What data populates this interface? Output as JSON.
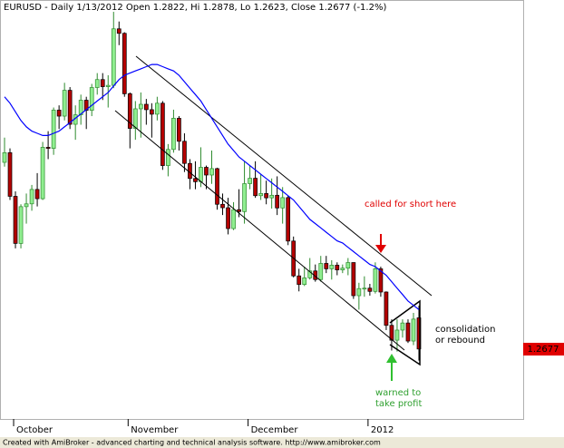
{
  "chart_data": {
    "type": "candlestick",
    "title": "EURUSD - Daily 1/13/2012 Open 1.2822, Hi 1.2878, Lo 1.2623, Close 1.2677 (-1.2%)",
    "categories": [
      null,
      null,
      "October",
      null,
      null,
      null,
      null,
      null,
      null,
      null,
      null,
      null,
      null,
      null,
      null,
      null,
      null,
      null,
      null,
      null,
      null,
      null,
      null,
      "November",
      null,
      null,
      null,
      null,
      null,
      null,
      null,
      null,
      null,
      null,
      null,
      null,
      null,
      null,
      null,
      null,
      null,
      null,
      null,
      null,
      null,
      "December",
      null,
      null,
      null,
      null,
      null,
      null,
      null,
      null,
      null,
      null,
      null,
      null,
      null,
      null,
      null,
      null,
      null,
      null,
      null,
      null,
      null,
      "2012",
      null,
      null,
      null,
      null,
      null,
      null,
      null,
      null,
      null
    ],
    "open": [
      1.3545,
      1.359,
      1.3387,
      1.3168,
      1.3339,
      1.3352,
      1.3419,
      1.3376,
      1.3615,
      1.361,
      1.3788,
      1.376,
      1.388,
      1.3722,
      1.3766,
      1.3834,
      1.3787,
      1.3893,
      1.393,
      1.3897,
      1.3903,
      1.4166,
      1.4145,
      1.3864,
      1.3703,
      1.3794,
      1.3815,
      1.379,
      1.3769,
      1.382,
      1.353,
      1.3605,
      1.375,
      1.3643,
      1.354,
      1.347,
      1.3455,
      1.3522,
      1.3486,
      1.3516,
      1.335,
      1.3334,
      1.3237,
      1.3325,
      1.3316,
      1.3446,
      1.3471,
      1.339,
      1.34,
      1.338,
      1.3392,
      1.3333,
      1.3381,
      1.3179,
      1.3017,
      1.2977,
      1.3008,
      1.304,
      1.3,
      1.3075,
      1.305,
      1.3067,
      1.3045,
      1.3053,
      1.3079,
      1.2925,
      1.2958,
      1.296,
      1.2945,
      1.305,
      1.2942,
      1.2787,
      1.2718,
      1.2765,
      1.2798,
      1.2714,
      1.2822
    ],
    "high": [
      1.366,
      1.361,
      1.341,
      1.335,
      1.34,
      1.344,
      1.3495,
      1.364,
      1.369,
      1.38,
      1.381,
      1.3915,
      1.3895,
      1.381,
      1.386,
      1.385,
      1.391,
      1.396,
      1.396,
      1.395,
      1.4245,
      1.42,
      1.415,
      1.387,
      1.383,
      1.387,
      1.384,
      1.382,
      1.385,
      1.383,
      1.363,
      1.379,
      1.376,
      1.368,
      1.356,
      1.355,
      1.3615,
      1.353,
      1.36,
      1.352,
      1.34,
      1.338,
      1.336,
      1.342,
      1.355,
      1.353,
      1.355,
      1.349,
      1.346,
      1.347,
      1.348,
      1.343,
      1.339,
      1.32,
      1.305,
      1.306,
      1.31,
      1.307,
      1.311,
      1.311,
      1.309,
      1.308,
      1.307,
      1.31,
      1.308,
      1.2985,
      1.3015,
      1.298,
      1.308,
      1.306,
      1.2945,
      1.2815,
      1.2815,
      1.2815,
      1.2815,
      1.2845,
      1.2878
    ],
    "low": [
      1.3525,
      1.337,
      1.3145,
      1.3145,
      1.326,
      1.332,
      1.334,
      1.337,
      1.356,
      1.358,
      1.37,
      1.374,
      1.37,
      1.365,
      1.372,
      1.37,
      1.376,
      1.386,
      1.3835,
      1.38,
      1.389,
      1.409,
      1.385,
      1.361,
      1.365,
      1.366,
      1.372,
      1.366,
      1.374,
      1.351,
      1.348,
      1.359,
      1.36,
      1.35,
      1.342,
      1.342,
      1.343,
      1.342,
      1.3445,
      1.3325,
      1.33,
      1.321,
      1.323,
      1.329,
      1.326,
      1.342,
      1.338,
      1.337,
      1.335,
      1.333,
      1.33,
      1.326,
      1.316,
      1.301,
      1.2945,
      1.297,
      1.3,
      1.299,
      1.299,
      1.303,
      1.3,
      1.302,
      1.303,
      1.302,
      1.291,
      1.286,
      1.292,
      1.2925,
      1.2935,
      1.292,
      1.2765,
      1.267,
      1.2665,
      1.273,
      1.2705,
      1.2695,
      1.2623
    ],
    "close": [
      1.359,
      1.3387,
      1.3168,
      1.3339,
      1.3352,
      1.3419,
      1.3376,
      1.3615,
      1.361,
      1.3788,
      1.376,
      1.388,
      1.3722,
      1.3766,
      1.3834,
      1.3787,
      1.3893,
      1.393,
      1.3897,
      1.3903,
      1.4166,
      1.4145,
      1.3864,
      1.3703,
      1.3794,
      1.3815,
      1.379,
      1.3769,
      1.382,
      1.353,
      1.3605,
      1.375,
      1.3643,
      1.354,
      1.347,
      1.3455,
      1.3522,
      1.3486,
      1.3516,
      1.335,
      1.3334,
      1.3237,
      1.3325,
      1.3316,
      1.3446,
      1.3471,
      1.339,
      1.34,
      1.338,
      1.3392,
      1.3333,
      1.3381,
      1.3179,
      1.3017,
      1.2977,
      1.3008,
      1.304,
      1.3,
      1.3075,
      1.305,
      1.3067,
      1.3045,
      1.3053,
      1.3079,
      1.2925,
      1.2958,
      1.296,
      1.2945,
      1.305,
      1.2942,
      1.2787,
      1.2718,
      1.2765,
      1.2798,
      1.2714,
      1.2816,
      1.2677
    ],
    "up_color": "#90ee90",
    "up_edge": "#2e8b2e",
    "down_color": "#b40000",
    "down_edge": "#000000",
    "moving_average": {
      "color": "#0000ff",
      "values": [
        1.385,
        1.382,
        1.378,
        1.374,
        1.371,
        1.369,
        1.368,
        1.367,
        1.367,
        1.368,
        1.369,
        1.371,
        1.373,
        1.375,
        1.377,
        1.379,
        1.381,
        1.383,
        1.385,
        1.387,
        1.39,
        1.393,
        1.395,
        1.396,
        1.397,
        1.398,
        1.399,
        1.4,
        1.4,
        1.399,
        1.398,
        1.397,
        1.395,
        1.392,
        1.389,
        1.386,
        1.383,
        1.379,
        1.375,
        1.371,
        1.367,
        1.363,
        1.36,
        1.357,
        1.355,
        1.353,
        1.351,
        1.349,
        1.347,
        1.345,
        1.343,
        1.341,
        1.339,
        1.337,
        1.334,
        1.331,
        1.328,
        1.326,
        1.324,
        1.322,
        1.32,
        1.318,
        1.317,
        1.315,
        1.313,
        1.311,
        1.309,
        1.307,
        1.306,
        1.304,
        1.302,
        1.299,
        1.296,
        1.293,
        1.29,
        1.288,
        1.286
      ]
    },
    "ylim": [
      1.236,
      1.43
    ],
    "annotations": {
      "short": "called for short here",
      "consolidation": [
        "consolidation",
        "or rebound"
      ],
      "profit": [
        "warned to",
        "take profit"
      ]
    }
  },
  "footer": "Created with AmiBroker - advanced charting and technical analysis software. http://www.amibroker.com"
}
